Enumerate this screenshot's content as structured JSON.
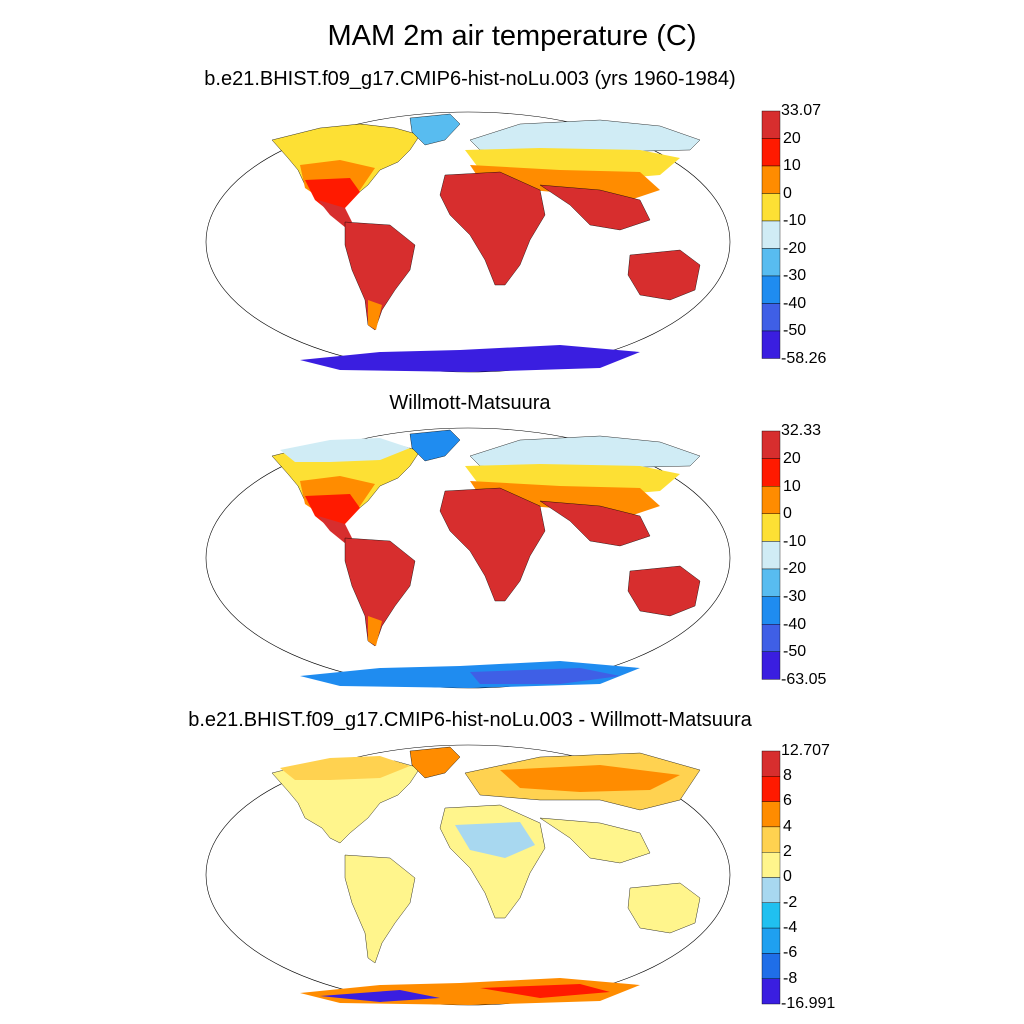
{
  "title": "MAM 2m air temperature (C)",
  "panels": [
    {
      "title": "b.e21.BHIST.f09_g17.CMIP6-hist-noLu.003 (yrs 1960-1984)",
      "colors": [
        "#3a1ee0",
        "#3f5fe6",
        "#1f8cf0",
        "#58bcf0",
        "#d0ecf5",
        "#fde034",
        "#ff8c00",
        "#ff1a00",
        "#d72e2e"
      ],
      "labels": [
        "33.07",
        "20",
        "10",
        "0",
        "-10",
        "-20",
        "-30",
        "-40",
        "-50",
        "-58.26"
      ],
      "fills": {
        "ocean": "#ffffff",
        "antarctic": "#3a1ee0"
      }
    },
    {
      "title": "Willmott-Matsuura",
      "colors": [
        "#3a1ee0",
        "#3f5fe6",
        "#1f8cf0",
        "#58bcf0",
        "#d0ecf5",
        "#fde034",
        "#ff8c00",
        "#ff1a00",
        "#d72e2e"
      ],
      "labels": [
        "32.33",
        "20",
        "10",
        "0",
        "-10",
        "-20",
        "-30",
        "-40",
        "-50",
        "-63.05"
      ],
      "fills": {
        "ocean": "#ffffff",
        "antarctic": "#1f8cf0"
      }
    },
    {
      "title": "b.e21.BHIST.f09_g17.CMIP6-hist-noLu.003 - Willmott-Matsuura",
      "colors": [
        "#3a1ee0",
        "#1f6ee8",
        "#1fa0f0",
        "#20c0f0",
        "#a8d8f0",
        "#fff58c",
        "#ffd250",
        "#ff8c00",
        "#ff1a00",
        "#d72e2e"
      ],
      "labels": [
        "12.707",
        "8",
        "6",
        "4",
        "2",
        "0",
        "-2",
        "-4",
        "-6",
        "-8",
        "-16.991"
      ],
      "fills": {
        "ocean": "#ffffff",
        "antarctic": "#ff8c00"
      }
    }
  ]
}
